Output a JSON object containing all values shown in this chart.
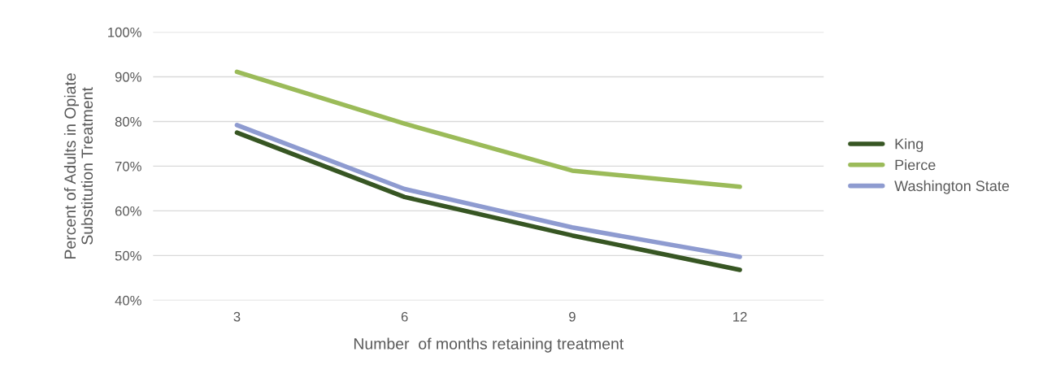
{
  "chart_data": {
    "type": "line",
    "xlabel": "Number  of months retaining treatment",
    "ylabel": "Percent of Adults in Opiate\nSubstitution Treatment",
    "categories": [
      "3",
      "6",
      "9",
      "12"
    ],
    "series": [
      {
        "name": "King",
        "color": "#375623",
        "values": [
          77.5,
          63.1,
          54.5,
          46.8
        ]
      },
      {
        "name": "Pierce",
        "color": "#9bbb59",
        "values": [
          91.1,
          79.5,
          69.0,
          65.4
        ]
      },
      {
        "name": "Washington State",
        "color": "#8e9bd0",
        "values": [
          79.2,
          64.9,
          56.3,
          49.7
        ]
      }
    ],
    "ylim": [
      40,
      100
    ],
    "yticks": [
      {
        "value": 40,
        "label": "40%"
      },
      {
        "value": 50,
        "label": "50%"
      },
      {
        "value": 60,
        "label": "60%"
      },
      {
        "value": 70,
        "label": "70%"
      },
      {
        "value": 80,
        "label": "80%"
      },
      {
        "value": 90,
        "label": "90%"
      },
      {
        "value": 100,
        "label": "100%"
      }
    ],
    "grid": "y",
    "legend": "right",
    "marker": "none",
    "line_style": "solid"
  }
}
